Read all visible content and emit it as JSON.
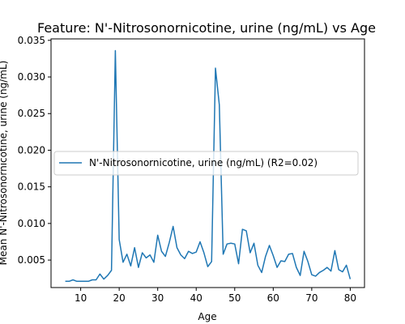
{
  "chart_data": {
    "type": "line",
    "title": "Feature: N'-Nitrosonornicotine, urine (ng/mL) vs Age",
    "xlabel": "Age",
    "ylabel": "Mean N'-Nitrosonornicotine, urine (ng/mL)",
    "xlim": [
      2.3,
      83.7
    ],
    "ylim": [
      0.00125,
      0.0352
    ],
    "xticks": [
      10,
      20,
      30,
      40,
      50,
      60,
      70,
      80
    ],
    "xtick_labels": [
      "10",
      "20",
      "30",
      "40",
      "50",
      "60",
      "70",
      "80"
    ],
    "yticks": [
      0.005,
      0.01,
      0.015,
      0.02,
      0.025,
      0.03,
      0.035
    ],
    "ytick_labels": [
      "0.005",
      "0.010",
      "0.015",
      "0.020",
      "0.025",
      "0.030",
      "0.035"
    ],
    "grid": false,
    "legend_position": "center-left",
    "series": [
      {
        "name": "N'-Nitrosonornicotine, urine (ng/mL) (R2=0.02)",
        "color": "#1f77b4",
        "x": [
          6,
          7,
          8,
          9,
          10,
          11,
          12,
          13,
          14,
          15,
          16,
          17,
          18,
          19,
          20,
          21,
          22,
          23,
          24,
          25,
          26,
          27,
          28,
          29,
          30,
          31,
          32,
          33,
          34,
          35,
          36,
          37,
          38,
          39,
          40,
          41,
          42,
          43,
          44,
          45,
          46,
          47,
          48,
          49,
          50,
          51,
          52,
          53,
          54,
          55,
          56,
          57,
          58,
          59,
          60,
          61,
          62,
          63,
          64,
          65,
          66,
          67,
          68,
          69,
          70,
          71,
          72,
          73,
          74,
          75,
          76,
          77,
          78,
          79,
          80
        ],
        "y": [
          0.0021,
          0.0021,
          0.0023,
          0.0021,
          0.0021,
          0.0021,
          0.0021,
          0.0023,
          0.0023,
          0.0031,
          0.0024,
          0.0029,
          0.0036,
          0.0336,
          0.0078,
          0.0047,
          0.0058,
          0.0042,
          0.0067,
          0.004,
          0.006,
          0.0053,
          0.0057,
          0.0047,
          0.0084,
          0.0062,
          0.0055,
          0.0074,
          0.0096,
          0.0067,
          0.0057,
          0.0052,
          0.0062,
          0.0059,
          0.0061,
          0.0075,
          0.006,
          0.0041,
          0.0048,
          0.0312,
          0.0262,
          0.0058,
          0.0072,
          0.0073,
          0.0072,
          0.0045,
          0.0092,
          0.009,
          0.006,
          0.0073,
          0.0043,
          0.0033,
          0.0055,
          0.007,
          0.0056,
          0.004,
          0.0049,
          0.0048,
          0.0058,
          0.0059,
          0.004,
          0.0029,
          0.0062,
          0.0048,
          0.003,
          0.0028,
          0.0033,
          0.0036,
          0.004,
          0.0035,
          0.0063,
          0.0037,
          0.0034,
          0.0043,
          0.0024
        ]
      }
    ]
  }
}
